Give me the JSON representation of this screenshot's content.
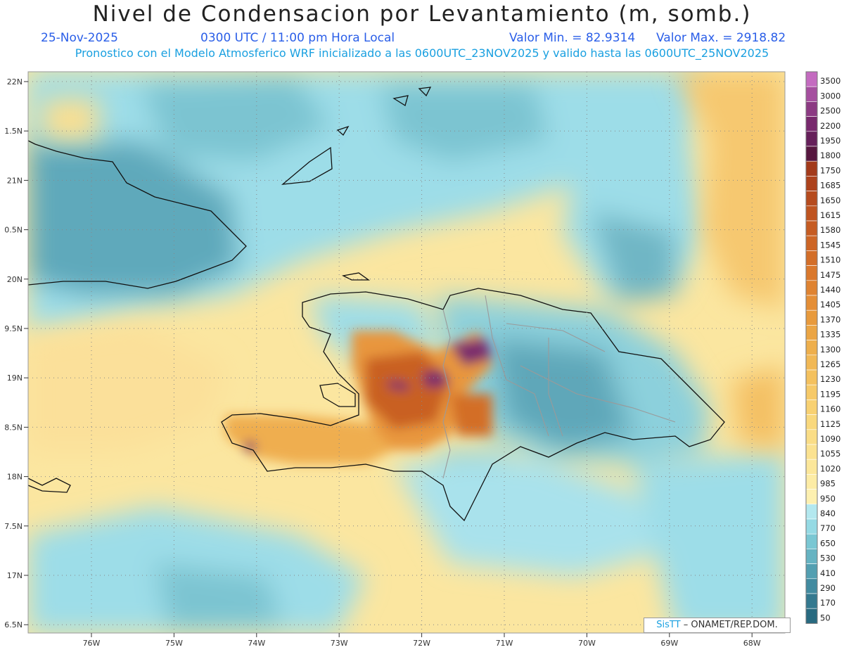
{
  "header": {
    "title": "Nivel de Condensacion por Levantamiento (m, somb.)",
    "date": "25-Nov-2025",
    "time": "0300 UTC / 11:00 pm Hora Local",
    "min_value": "Valor Min. = 82.9314",
    "max_value": "Valor Max. = 2918.82",
    "subtitle": "Pronostico con el Modelo Atmosferico WRF inicializado a las 0600UTC_23NOV2025 y valido hasta las  0600UTC_25NOV2025"
  },
  "axes": {
    "lat_labels": [
      "22N",
      "1.5N",
      "21N",
      "0.5N",
      "20N",
      "9.5N",
      "19N",
      "8.5N",
      "18N",
      "7.5N",
      "17N",
      "6.5N"
    ],
    "lon_labels": [
      "76W",
      "75W",
      "74W",
      "73W",
      "72W",
      "71W",
      "70W",
      "69W",
      "68W"
    ]
  },
  "legend": {
    "levels": [
      "3500",
      "3000",
      "2500",
      "2200",
      "1950",
      "1800",
      "1750",
      "1685",
      "1650",
      "1615",
      "1580",
      "1545",
      "1510",
      "1475",
      "1440",
      "1405",
      "1370",
      "1335",
      "1300",
      "1265",
      "1230",
      "1195",
      "1160",
      "1125",
      "1090",
      "1055",
      "1020",
      "985",
      "950",
      "840",
      "770",
      "650",
      "530",
      "410",
      "290",
      "170",
      "50"
    ],
    "colors": [
      "#c46bc0",
      "#a54f9f",
      "#8c3a83",
      "#78296d",
      "#66205a",
      "#57173f",
      "#a33a1a",
      "#ad421c",
      "#b64b1e",
      "#bf5420",
      "#c65c22",
      "#cd6525",
      "#d36e28",
      "#da782c",
      "#df8331",
      "#e48e36",
      "#e89a3c",
      "#eba544",
      "#eeaf4c",
      "#f1b855",
      "#f4c15e",
      "#f6c968",
      "#f8d172",
      "#f9d87c",
      "#fadd86",
      "#fbe290",
      "#fce79a",
      "#fdeca5",
      "#fdf0b0",
      "#b3e8ef",
      "#95dae4",
      "#7ac7d3",
      "#66b3c2",
      "#539fb1",
      "#428ba0",
      "#34798f",
      "#286a80"
    ]
  },
  "credit": {
    "brand": "SisTT",
    "org": "– ONAMET/REP.DOM."
  }
}
